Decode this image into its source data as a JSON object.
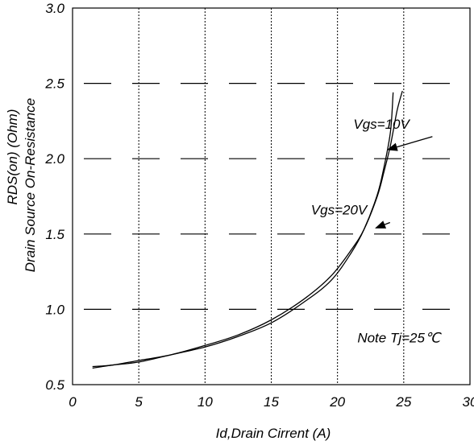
{
  "chart_data": {
    "type": "line",
    "title": "",
    "xlabel": "Id,Drain Cirrent (A)",
    "ylabel_lines": [
      "RDS(on) (Ohm)",
      "Drain Source On-Resistance"
    ],
    "xlim": [
      0,
      30
    ],
    "ylim": [
      0.5,
      3.0
    ],
    "xticks": [
      0,
      5,
      10,
      15,
      20,
      25,
      30
    ],
    "yticks": [
      0.5,
      1.0,
      1.5,
      2.0,
      2.5,
      3.0
    ],
    "x_tick_labels": [
      "0",
      "5",
      "10",
      "15",
      "20",
      "25",
      "30"
    ],
    "y_tick_labels": [
      "0.5",
      "1.0",
      "1.5",
      "2.0",
      "2.5",
      "3.0"
    ],
    "grid": true,
    "series": [
      {
        "name": "Vgs=10V",
        "x": [
          1.5,
          3,
          5,
          7.5,
          10,
          12.5,
          15,
          17.5,
          19.5,
          21,
          22,
          23,
          23.5,
          24,
          24.5,
          24.9
        ],
        "y": [
          0.62,
          0.63,
          0.66,
          0.7,
          0.76,
          0.83,
          0.93,
          1.07,
          1.22,
          1.39,
          1.53,
          1.75,
          1.91,
          2.09,
          2.32,
          2.45
        ]
      },
      {
        "name": "Vgs=20V",
        "x": [
          1.5,
          3,
          5,
          7.5,
          10,
          12.5,
          15,
          17.5,
          19.5,
          21,
          22,
          23,
          23.5,
          24,
          24.2
        ],
        "y": [
          0.61,
          0.63,
          0.65,
          0.7,
          0.75,
          0.82,
          0.91,
          1.05,
          1.19,
          1.37,
          1.53,
          1.76,
          1.94,
          2.18,
          2.44
        ]
      }
    ],
    "annotations": [
      {
        "text": "Vgs=10V",
        "x": 21.2,
        "y": 2.2,
        "arrow_x": 23.8,
        "arrow_y": 2.06
      },
      {
        "text": "Vgs=20V",
        "x": 18.0,
        "y": 1.63,
        "arrow_x": 22.9,
        "arrow_y": 1.54
      },
      {
        "text": "Note Tj=25℃",
        "x": 21.5,
        "y": 0.78
      }
    ]
  }
}
